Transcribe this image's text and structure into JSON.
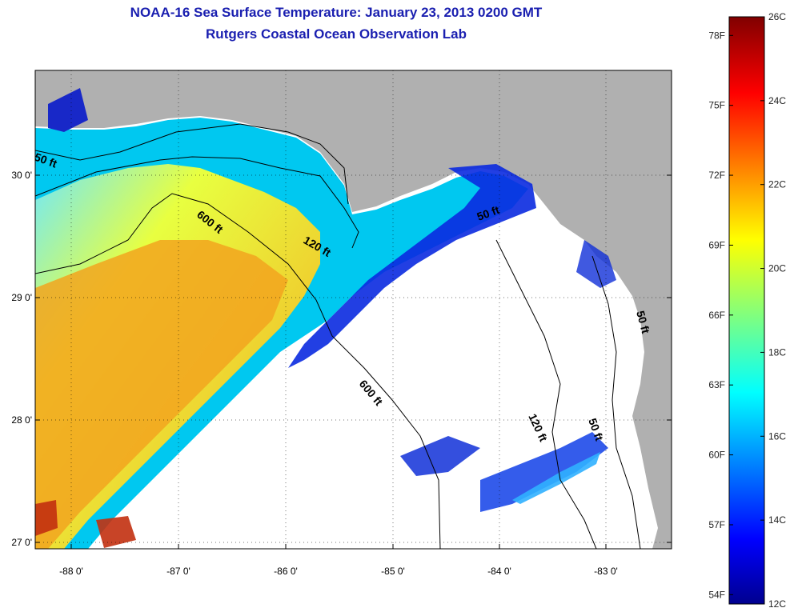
{
  "header": {
    "title_line1": "NOAA-16 Sea Surface Temperature:  January 23, 2013 0200 GMT",
    "title_line2": "Rutgers Coastal Ocean Observation Lab"
  },
  "map": {
    "lat_labels": [
      "30 0'",
      "29 0'",
      "28 0'",
      "27 0'"
    ],
    "lon_labels": [
      "-88 0'",
      "-87 0'",
      "-86 0'",
      "-85 0'",
      "-84 0'",
      "-83 0'"
    ],
    "contours": [
      {
        "label": "50 ft"
      },
      {
        "label": "600 ft"
      },
      {
        "label": "120 ft"
      },
      {
        "label": "600 ft"
      },
      {
        "label": "50 ft"
      },
      {
        "label": "120 ft"
      },
      {
        "label": "50 ft"
      },
      {
        "label": "50 ft"
      }
    ]
  },
  "colorbar": {
    "celsius": [
      "26C",
      "24C",
      "22C",
      "20C",
      "18C",
      "16C",
      "14C",
      "12C"
    ],
    "fahrenheit": [
      "78F",
      "75F",
      "72F",
      "69F",
      "66F",
      "63F",
      "60F",
      "57F",
      "54F"
    ],
    "min_c": 12,
    "max_c": 26
  },
  "colors": {
    "title": "#1a1fb0",
    "land": "#b0b0b0",
    "frame": "#000000"
  }
}
